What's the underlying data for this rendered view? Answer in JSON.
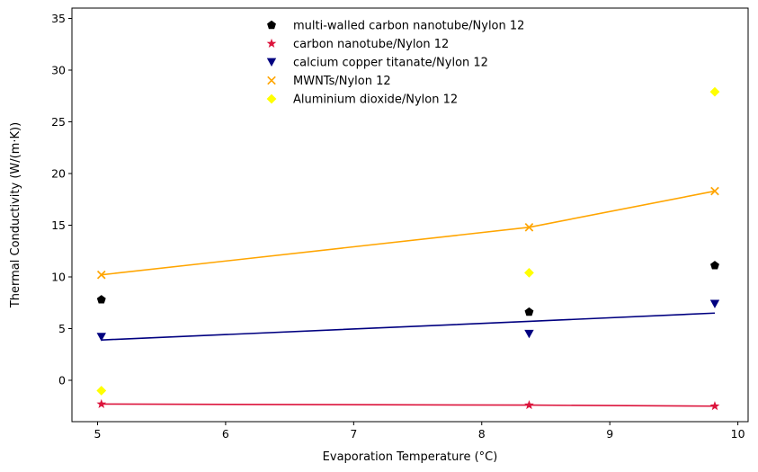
{
  "chart_data": {
    "type": "scatter",
    "xlabel": "Evaporation Temperature (°C)",
    "ylabel": "Thermal Conductivity (W/(m·K))",
    "xlim": [
      4.8,
      10.08
    ],
    "ylim": [
      -4,
      36
    ],
    "xticks": [
      "5",
      "6",
      "7",
      "8",
      "9",
      "10"
    ],
    "yticks": [
      "0",
      "5",
      "10",
      "15",
      "20",
      "25",
      "30",
      "35"
    ],
    "grid": false,
    "legend_position": "top-center",
    "series": [
      {
        "name": "multi-walled carbon nanotube/Nylon 12",
        "color": "#000000",
        "marker": "pentagon",
        "x": [
          5.03,
          8.37,
          9.82
        ],
        "y": [
          7.8,
          6.6,
          11.1
        ],
        "line": null
      },
      {
        "name": "carbon nanotube/Nylon 12",
        "color": "#dc143c",
        "marker": "star",
        "x": [
          5.03,
          8.37,
          9.82
        ],
        "y": [
          -2.3,
          -2.4,
          -2.5
        ],
        "line": {
          "x": [
            5.03,
            8.37,
            9.82
          ],
          "y": [
            -2.3,
            -2.4,
            -2.5
          ]
        }
      },
      {
        "name": "calcium copper titanate/Nylon 12",
        "color": "#000080",
        "marker": "triangle-down",
        "x": [
          5.03,
          8.37,
          9.82
        ],
        "y": [
          4.2,
          4.5,
          7.4
        ],
        "line": {
          "x": [
            5.03,
            8.37,
            9.82
          ],
          "y": [
            3.9,
            5.7,
            6.5
          ]
        }
      },
      {
        "name": "MWNTs/Nylon 12",
        "color": "#ffa500",
        "marker": "x",
        "x": [
          5.03,
          8.37,
          9.82
        ],
        "y": [
          10.2,
          14.8,
          18.3
        ],
        "line": {
          "x": [
            5.03,
            8.37,
            9.82
          ],
          "y": [
            10.2,
            14.8,
            18.3
          ]
        }
      },
      {
        "name": "Aluminium dioxide/Nylon 12",
        "color": "#ffff00",
        "marker": "diamond",
        "x": [
          5.03,
          8.37,
          9.82
        ],
        "y": [
          -1.0,
          10.4,
          27.9
        ],
        "line": null
      }
    ]
  }
}
